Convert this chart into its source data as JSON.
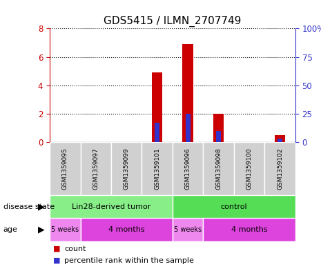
{
  "title": "GDS5415 / ILMN_2707749",
  "samples": [
    "GSM1359095",
    "GSM1359097",
    "GSM1359099",
    "GSM1359101",
    "GSM1359096",
    "GSM1359098",
    "GSM1359100",
    "GSM1359102"
  ],
  "counts": [
    0,
    0,
    0,
    4.9,
    6.9,
    2.0,
    0,
    0.5
  ],
  "percentiles": [
    0,
    0,
    0,
    17,
    25,
    10,
    0,
    3
  ],
  "ylim_left": [
    0,
    8
  ],
  "ylim_right": [
    0,
    100
  ],
  "yticks_left": [
    0,
    2,
    4,
    6,
    8
  ],
  "yticks_right": [
    0,
    25,
    50,
    75,
    100
  ],
  "yticklabels_right": [
    "0",
    "25",
    "50",
    "75",
    "100%"
  ],
  "bar_color_count": "#cc0000",
  "bar_color_percentile": "#3333cc",
  "bar_width": 0.35,
  "grid_color": "black",
  "disease_state_groups": [
    {
      "label": "Lin28-derived tumor",
      "start": 0,
      "end": 4,
      "color": "#88ee88"
    },
    {
      "label": "control",
      "start": 4,
      "end": 8,
      "color": "#55dd55"
    }
  ],
  "age_groups": [
    {
      "label": "5 weeks",
      "start": 0,
      "end": 1,
      "color": "#ee88ee"
    },
    {
      "label": "4 months",
      "start": 1,
      "end": 4,
      "color": "#dd44dd"
    },
    {
      "label": "5 weeks",
      "start": 4,
      "end": 5,
      "color": "#ee88ee"
    },
    {
      "label": "4 months",
      "start": 5,
      "end": 8,
      "color": "#dd44dd"
    }
  ],
  "left_axis_color": "#cc0000",
  "right_axis_color": "#3333cc",
  "legend_items": [
    {
      "label": "count",
      "color": "#cc0000"
    },
    {
      "label": "percentile rank within the sample",
      "color": "#3333cc"
    }
  ],
  "disease_state_label": "disease state",
  "age_label": "age",
  "bg_color": "#ffffff",
  "sample_label_bg": "#d0d0d0"
}
